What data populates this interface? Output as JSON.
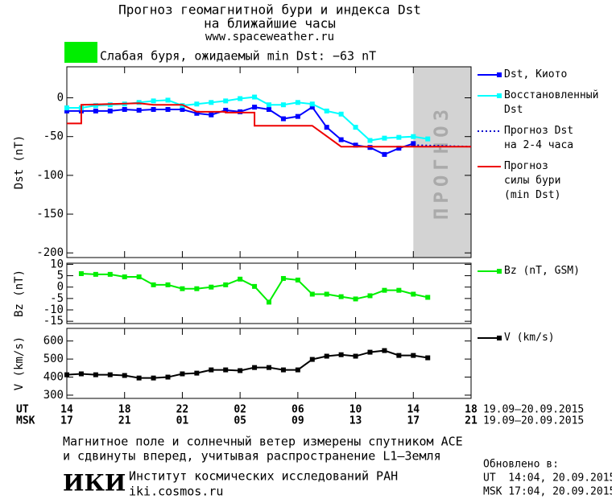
{
  "header": {
    "title": "Прогноз геомагнитной бури и индекса Dst",
    "subtitle": "на ближайшие часы",
    "url": "www.spaceweather.ru"
  },
  "status": {
    "text": "Слабая буря, ожидаемый min Dst: −63 nT",
    "color": "#00ee00"
  },
  "chart_data": [
    {
      "type": "line",
      "ylabel": "Dst (nT)",
      "xlim": [
        0,
        28
      ],
      "xticks": [
        0,
        4,
        8,
        12,
        16,
        20,
        24,
        28
      ],
      "ylim": [
        -206,
        40
      ],
      "yticks": [
        0,
        -50,
        -100,
        -150,
        -200
      ],
      "forecast_band": {
        "x": [
          24,
          28
        ],
        "label": "ПРОГНОЗ",
        "color": "#d3d3d3"
      },
      "series": [
        {
          "name": "Dst, Киото",
          "color": "#0000ff",
          "style": "solid",
          "marker": true,
          "x": [
            0,
            1,
            2,
            3,
            4,
            5,
            6,
            7,
            8,
            9,
            10,
            11,
            12,
            13,
            14,
            15,
            16,
            17,
            18,
            19,
            20,
            21,
            22,
            23,
            24
          ],
          "values": [
            -17,
            -17,
            -17,
            -17,
            -15,
            -16,
            -15,
            -15,
            -15,
            -20,
            -22,
            -16,
            -18,
            -12,
            -15,
            -27,
            -24,
            -12,
            -38,
            -54,
            -61,
            -64,
            -73,
            -65,
            -59
          ]
        },
        {
          "name": "Восстановленный\nDst",
          "color": "#00ffff",
          "style": "solid",
          "marker": true,
          "x": [
            0,
            1,
            2,
            3,
            4,
            5,
            6,
            7,
            8,
            9,
            10,
            11,
            12,
            13,
            14,
            15,
            16,
            17,
            18,
            19,
            20,
            21,
            22,
            23,
            24,
            25
          ],
          "values": [
            -13,
            -13,
            -10,
            -9,
            -8,
            -6,
            -4,
            -3,
            -10,
            -8,
            -6,
            -4,
            -1,
            1,
            -9,
            -9,
            -6,
            -8,
            -17,
            -21,
            -38,
            -55,
            -52,
            -51,
            -50,
            -53
          ]
        },
        {
          "name": "Прогноз Dst\nна 2-4 часа",
          "color": "#0000cc",
          "style": "dotted",
          "marker": false,
          "x": [
            24,
            28
          ],
          "values": [
            -61,
            -63
          ]
        },
        {
          "name": "Прогноз\nсилы бури\n(min Dst)",
          "color": "#ee0000",
          "style": "solid",
          "marker": false,
          "x": [
            0,
            1,
            1,
            5,
            6,
            8,
            9,
            11,
            11,
            13,
            13,
            17,
            19,
            28
          ],
          "values": [
            -33,
            -33,
            -9,
            -7,
            -9,
            -9,
            -18,
            -18,
            -19,
            -19,
            -36,
            -36,
            -63,
            -63
          ]
        }
      ]
    },
    {
      "type": "line",
      "ylabel": "Bz (nT)",
      "xlim": [
        0,
        28
      ],
      "xticks": [
        0,
        4,
        8,
        12,
        16,
        20,
        24,
        28
      ],
      "ylim": [
        -16,
        10.5
      ],
      "yticks": [
        10,
        5,
        0,
        -5,
        -10,
        -15
      ],
      "series": [
        {
          "name": "Bz (nT, GSM)",
          "color": "#00ee00",
          "style": "solid",
          "marker": true,
          "x": [
            1,
            2,
            3,
            4,
            5,
            6,
            7,
            8,
            9,
            10,
            11,
            12,
            13,
            14,
            15,
            16,
            17,
            18,
            19,
            20,
            21,
            22,
            23,
            24,
            25
          ],
          "values": [
            5.9,
            5.6,
            5.6,
            4.5,
            4.5,
            1,
            1,
            -0.7,
            -0.7,
            0,
            1,
            3.5,
            0.3,
            -6.6,
            3.8,
            3.1,
            -3.1,
            -3.1,
            -4.2,
            -5.2,
            -3.8,
            -1.4,
            -1.4,
            -3.1,
            -4.5
          ]
        }
      ]
    },
    {
      "type": "line",
      "ylabel": "V (km/s)",
      "xlim": [
        0,
        28
      ],
      "xticks": [
        {
          "value": 0,
          "label": "14"
        },
        {
          "value": 4,
          "label": "18"
        },
        {
          "value": 8,
          "label": "22"
        },
        {
          "value": 12,
          "label": "02"
        },
        {
          "value": 16,
          "label": "06"
        },
        {
          "value": 20,
          "label": "10"
        },
        {
          "value": 24,
          "label": "14"
        },
        {
          "value": 28,
          "label": "18"
        }
      ],
      "xticks_msk": [
        {
          "value": 0,
          "label": "17"
        },
        {
          "value": 4,
          "label": "21"
        },
        {
          "value": 8,
          "label": "01"
        },
        {
          "value": 12,
          "label": "05"
        },
        {
          "value": 16,
          "label": "09"
        },
        {
          "value": 20,
          "label": "13"
        },
        {
          "value": 24,
          "label": "17"
        },
        {
          "value": 28,
          "label": "21"
        }
      ],
      "xlabel": "UT",
      "xlabel_msk": "MSK",
      "xrange": "19.09–20.09.2015",
      "xrange_msk": "19.09–20.09.2015",
      "ylim": [
        282,
        670
      ],
      "yticks": [
        600,
        500,
        400,
        300
      ],
      "series": [
        {
          "name": "V (km/s)",
          "color": "#000000",
          "style": "solid",
          "marker": true,
          "x": [
            0,
            1,
            2,
            3,
            4,
            5,
            6,
            7,
            8,
            9,
            10,
            11,
            12,
            13,
            14,
            15,
            16,
            17,
            18,
            19,
            20,
            21,
            22,
            23,
            24,
            25
          ],
          "values": [
            413,
            418,
            413,
            413,
            409,
            395,
            395,
            400,
            418,
            422,
            440,
            440,
            436,
            453,
            453,
            440,
            440,
            498,
            516,
            524,
            516,
            538,
            547,
            520,
            520,
            507
          ]
        }
      ]
    }
  ],
  "footer": {
    "note_1": "Магнитное поле и солнечный ветер измерены спутником ACE",
    "note_2": "и сдвинуты вперед, учитывая распространение L1–Земля",
    "logo": "ИКИ",
    "institute": "Институт космических исследований РАН",
    "site": "iki.cosmos.ru",
    "updated": "Обновлено в:",
    "updated_ut": "UT  14:04, 20.09.2015",
    "updated_msk": "MSK 17:04, 20.09.2015"
  }
}
